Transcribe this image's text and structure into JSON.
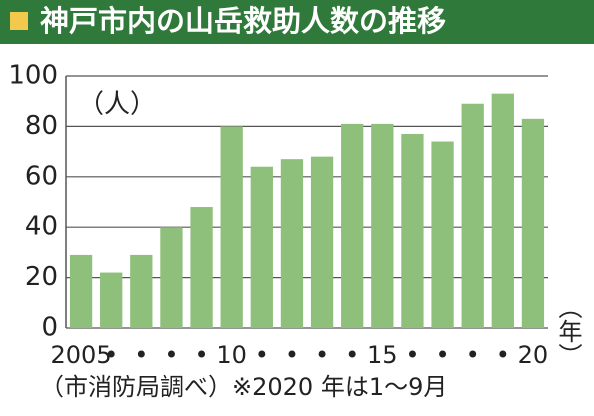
{
  "chart_data": {
    "type": "bar",
    "title": "神戸市内の山岳救助人数の推移",
    "y_unit": "（人）",
    "x_unit": "（年）",
    "categories": [
      "2005",
      "•",
      "•",
      "•",
      "•",
      "10",
      "•",
      "•",
      "•",
      "•",
      "15",
      "•",
      "•",
      "•",
      "•",
      "20"
    ],
    "values": [
      29,
      22,
      29,
      40,
      48,
      80,
      64,
      67,
      68,
      81,
      81,
      77,
      74,
      89,
      93,
      83
    ],
    "color": "#8fc07b",
    "ylim": [
      0,
      100
    ],
    "yticks": [
      0,
      20,
      40,
      60,
      80,
      100
    ],
    "grid": true,
    "note": "（市消防局調べ）※2020 年は1～9月"
  }
}
